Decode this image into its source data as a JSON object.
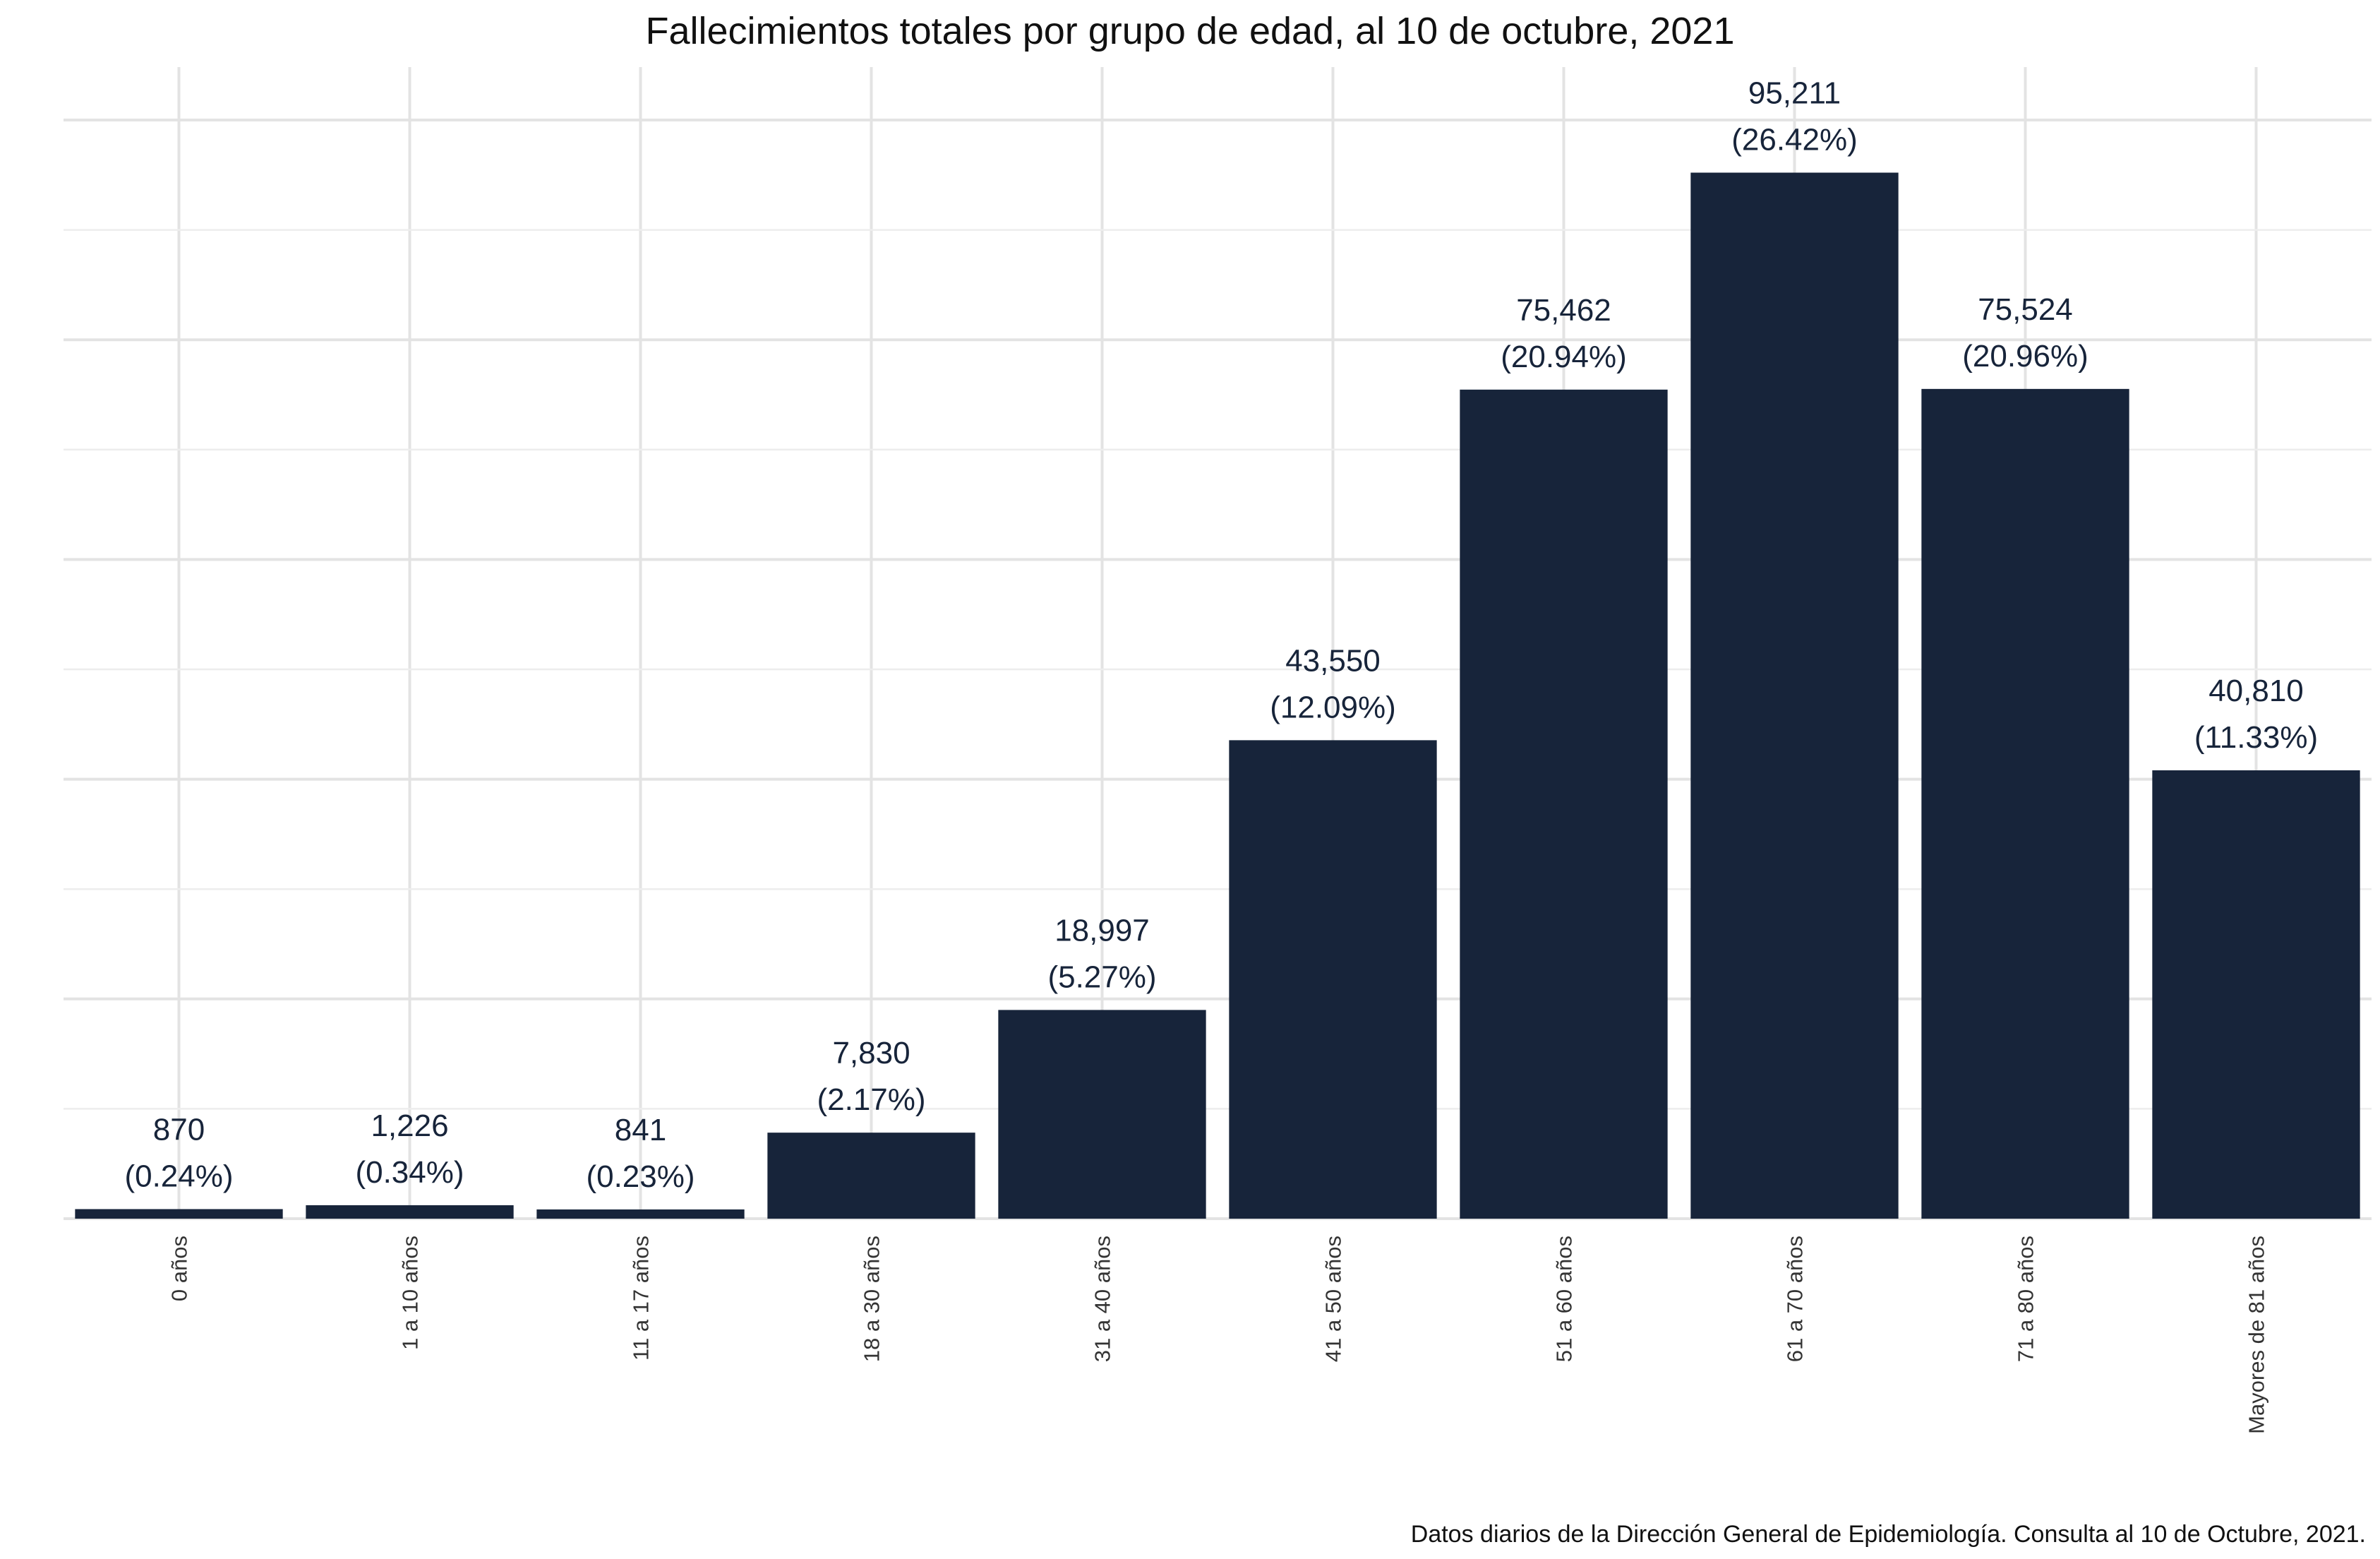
{
  "chart_data": {
    "type": "bar",
    "title": "Fallecimientos totales por grupo de edad, al 10 de octubre, 2021",
    "caption": "Datos diarios de la Dirección General de Epidemiología. Consulta al 10 de Octubre, 2021.",
    "xlabel": "",
    "ylabel": "",
    "categories": [
      "0 años",
      "1 a 10 años",
      "11 a 17 años",
      "18 a 30 años",
      "31 a 40 años",
      "41 a 50 años",
      "51 a 60 años",
      "61 a 70 años",
      "71 a 80 años",
      "Mayores de 81 años"
    ],
    "values": [
      870,
      1226,
      841,
      7830,
      18997,
      43550,
      75462,
      95211,
      75524,
      40810
    ],
    "value_labels": [
      "870",
      "1,226",
      "841",
      "7,830",
      "18,997",
      "43,550",
      "75,462",
      "95,211",
      "75,524",
      "40,810"
    ],
    "percent_labels": [
      "(0.24%)",
      "(0.34%)",
      "(0.23%)",
      "(2.17%)",
      "(5.27%)",
      "(12.09%)",
      "(20.94%)",
      "(26.42%)",
      "(20.96%)",
      "(11.33%)"
    ],
    "ylim": [
      0,
      100000
    ],
    "y_axis_labels_shown": false,
    "grid": true,
    "legend": "none",
    "colors": {
      "bar": "#17243a",
      "grid": "#e3e3e3",
      "text": "#17243a"
    }
  }
}
